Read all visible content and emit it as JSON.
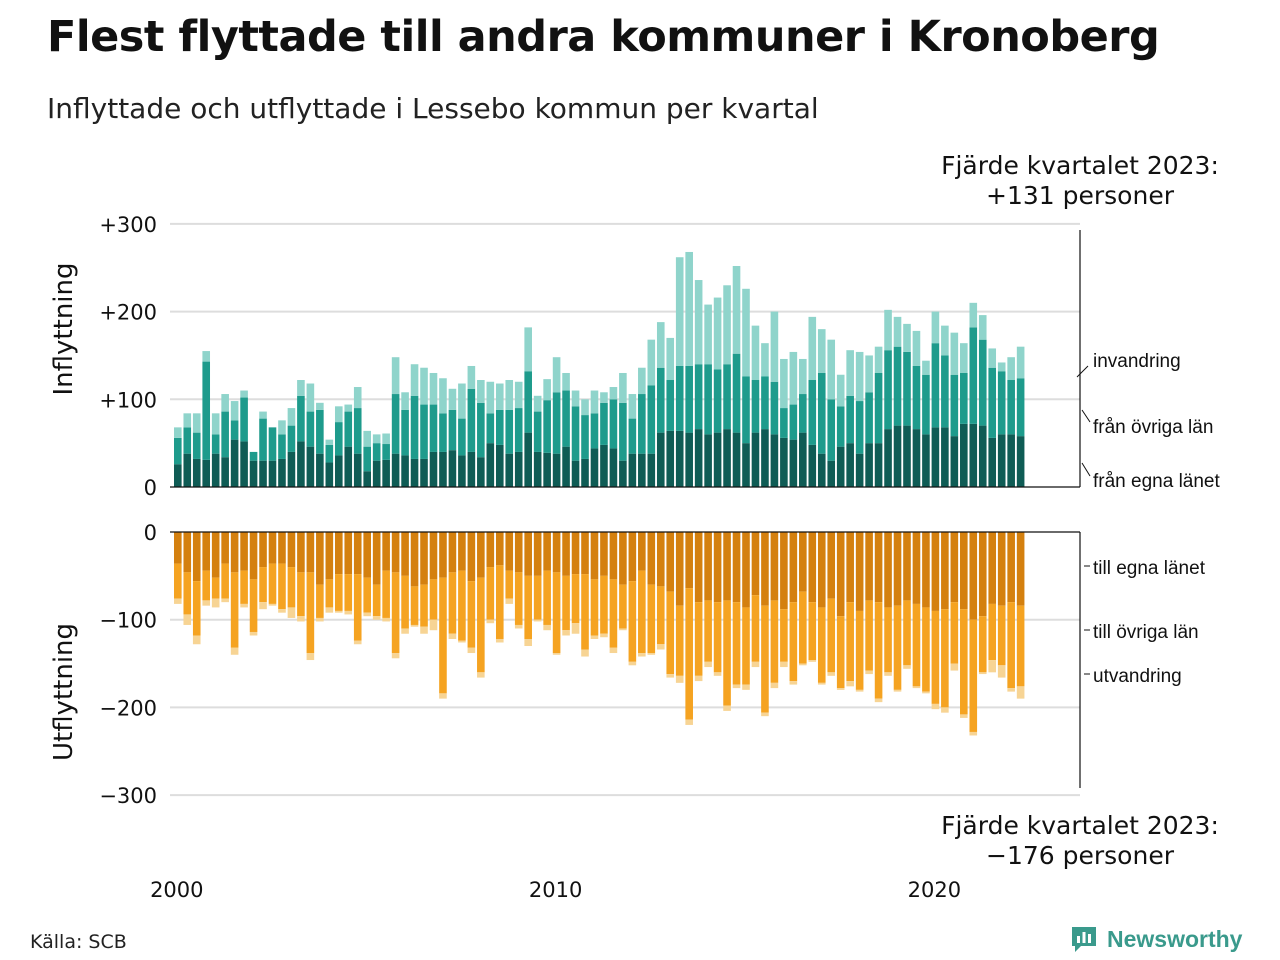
{
  "title": "Flest flyttade till andra kommuner i Kronoberg",
  "subtitle": "Inflyttade och utflyttade i Lessebo kommun per kvartal",
  "source": "Källa: SCB",
  "brand": "Newsworthy",
  "colors": {
    "in_egna": "#0f5c55",
    "in_ovriga": "#1e9b8c",
    "in_invandring": "#8fd4cb",
    "ut_egna": "#d4800f",
    "ut_ovriga": "#f5a321",
    "ut_utvandring": "#f7d494",
    "grid": "#dddddd",
    "brand": "#3a9a8c"
  },
  "chart_data": {
    "type": "bar",
    "x_start": "2000 Q1",
    "x_ticks": [
      "2000",
      "2010",
      "2020"
    ],
    "in_ticks": [
      "+300",
      "+200",
      "+100",
      "0"
    ],
    "out_ticks": [
      "0",
      "−100",
      "−200",
      "−300"
    ],
    "ylabel_in": "Inflyttning",
    "ylabel_out": "Utflyttning",
    "ylim_in": [
      0,
      300
    ],
    "ylim_out": [
      -300,
      0
    ],
    "annotation_in": [
      "Fjärde kvartalet 2023:",
      "+131 personer"
    ],
    "annotation_out": [
      "Fjärde kvartalet 2023:",
      "−176 personer"
    ],
    "labels_in": [
      "invandring",
      "från övriga län",
      "från egna länet"
    ],
    "labels_out": [
      "till egna länet",
      "till övriga län",
      "utvandring"
    ],
    "in_egna": [
      26,
      38,
      32,
      31,
      38,
      34,
      54,
      52,
      30,
      30,
      30,
      32,
      40,
      52,
      46,
      38,
      28,
      36,
      46,
      38,
      18,
      30,
      31,
      38,
      36,
      32,
      32,
      40,
      40,
      42,
      36,
      40,
      34,
      50,
      48,
      38,
      40,
      62,
      40,
      39,
      38,
      46,
      30,
      32,
      44,
      48,
      44,
      30,
      38,
      38,
      38,
      62,
      64,
      64,
      62,
      66,
      60,
      62,
      66,
      62,
      50,
      62,
      66,
      60,
      56,
      54,
      62,
      48,
      38,
      30,
      46,
      50,
      38,
      50,
      50,
      66,
      70,
      70,
      66,
      60,
      68,
      68,
      58,
      72,
      72,
      70,
      56,
      60,
      60,
      58
    ],
    "in_ovriga": [
      30,
      30,
      30,
      112,
      22,
      52,
      22,
      50,
      10,
      48,
      38,
      28,
      30,
      52,
      40,
      50,
      20,
      38,
      40,
      52,
      28,
      20,
      18,
      68,
      52,
      72,
      62,
      54,
      44,
      46,
      42,
      72,
      62,
      34,
      40,
      50,
      50,
      70,
      46,
      60,
      70,
      64,
      62,
      50,
      40,
      48,
      56,
      66,
      40,
      68,
      78,
      74,
      58,
      74,
      76,
      74,
      80,
      72,
      74,
      90,
      76,
      60,
      60,
      60,
      34,
      40,
      44,
      74,
      92,
      70,
      46,
      54,
      60,
      58,
      80,
      90,
      90,
      84,
      72,
      68,
      96,
      82,
      70,
      58,
      110,
      98,
      80,
      72,
      62,
      66
    ],
    "in_invandring": [
      12,
      16,
      22,
      12,
      24,
      20,
      22,
      8,
      0,
      8,
      0,
      16,
      20,
      18,
      32,
      8,
      6,
      18,
      8,
      24,
      18,
      10,
      12,
      42,
      20,
      36,
      42,
      36,
      40,
      24,
      40,
      26,
      26,
      36,
      30,
      34,
      30,
      50,
      18,
      24,
      40,
      20,
      18,
      18,
      26,
      12,
      14,
      34,
      28,
      30,
      52,
      52,
      48,
      124,
      130,
      96,
      68,
      82,
      90,
      100,
      100,
      62,
      38,
      80,
      56,
      60,
      40,
      72,
      50,
      68,
      36,
      52,
      56,
      42,
      30,
      46,
      34,
      32,
      40,
      16,
      36,
      34,
      48,
      34,
      28,
      28,
      22,
      10,
      26,
      36
    ],
    "ut_egna": [
      36,
      46,
      56,
      44,
      52,
      36,
      46,
      44,
      54,
      40,
      36,
      36,
      40,
      46,
      46,
      60,
      54,
      48,
      48,
      48,
      52,
      60,
      44,
      46,
      50,
      62,
      60,
      54,
      52,
      46,
      44,
      56,
      52,
      40,
      38,
      44,
      46,
      50,
      50,
      44,
      46,
      50,
      48,
      48,
      54,
      50,
      54,
      60,
      56,
      44,
      60,
      62,
      68,
      84,
      64,
      80,
      78,
      80,
      78,
      80,
      86,
      72,
      84,
      78,
      88,
      80,
      68,
      80,
      86,
      76,
      96,
      80,
      90,
      78,
      80,
      86,
      84,
      78,
      82,
      86,
      90,
      88,
      80,
      88,
      100,
      96,
      82,
      84,
      80,
      84
    ],
    "ut_ovriga": [
      40,
      48,
      62,
      34,
      24,
      40,
      86,
      38,
      60,
      40,
      46,
      52,
      46,
      50,
      92,
      38,
      32,
      42,
      42,
      76,
      40,
      36,
      54,
      92,
      60,
      44,
      48,
      46,
      132,
      70,
      80,
      76,
      108,
      60,
      84,
      32,
      60,
      72,
      50,
      62,
      92,
      62,
      56,
      86,
      64,
      66,
      78,
      50,
      92,
      94,
      78,
      66,
      94,
      80,
      150,
      84,
      70,
      80,
      120,
      94,
      88,
      76,
      122,
      94,
      60,
      90,
      82,
      66,
      86,
      84,
      82,
      90,
      90,
      80,
      110,
      74,
      96,
      74,
      94,
      96,
      106,
      112,
      70,
      120,
      128,
      64,
      64,
      68,
      98,
      92
    ],
    "ut_utvandring": [
      6,
      12,
      10,
      6,
      10,
      4,
      8,
      4,
      4,
      8,
      2,
      4,
      12,
      6,
      8,
      4,
      6,
      2,
      4,
      4,
      4,
      4,
      4,
      6,
      6,
      2,
      8,
      12,
      6,
      6,
      2,
      6,
      6,
      4,
      4,
      6,
      4,
      8,
      2,
      6,
      2,
      6,
      12,
      8,
      4,
      4,
      6,
      2,
      4,
      4,
      2,
      6,
      4,
      8,
      6,
      6,
      6,
      4,
      6,
      4,
      6,
      6,
      4,
      6,
      6,
      4,
      2,
      2,
      2,
      4,
      2,
      6,
      2,
      4,
      4,
      4,
      2,
      4,
      2,
      2,
      6,
      6,
      8,
      4,
      4,
      2,
      14,
      14,
      4,
      14
    ]
  }
}
